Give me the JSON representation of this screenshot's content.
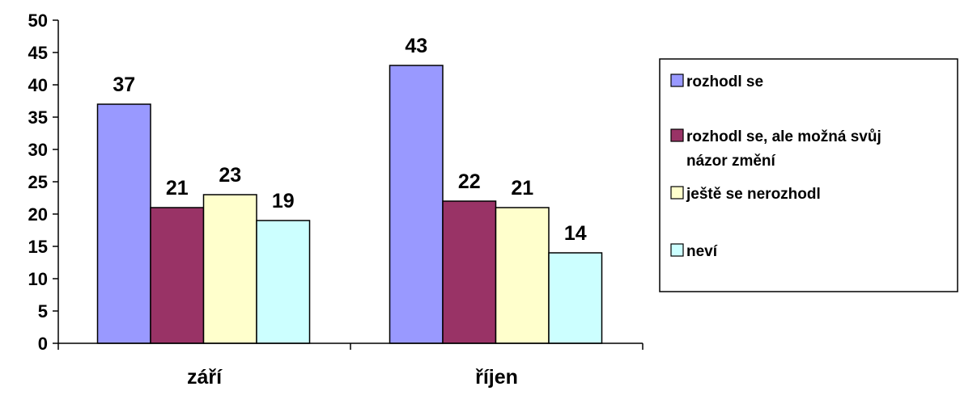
{
  "chart_data": {
    "type": "bar",
    "categories": [
      "září",
      "říjen"
    ],
    "series": [
      {
        "name": "rozhodl se",
        "values": [
          37,
          43
        ],
        "color": "#9999ff"
      },
      {
        "name": "rozhodl se, ale možná svůj názor změní",
        "values": [
          21,
          22
        ],
        "color": "#993366"
      },
      {
        "name": "ještě se nerozhodl",
        "values": [
          23,
          21
        ],
        "color": "#ffffcc"
      },
      {
        "name": "neví",
        "values": [
          19,
          14
        ],
        "color": "#ccffff"
      }
    ],
    "ylim": [
      0,
      50
    ],
    "yticks": [
      0,
      5,
      10,
      15,
      20,
      25,
      30,
      35,
      40,
      45,
      50
    ],
    "data_labels": true,
    "grid": false,
    "legend_position": "right"
  }
}
